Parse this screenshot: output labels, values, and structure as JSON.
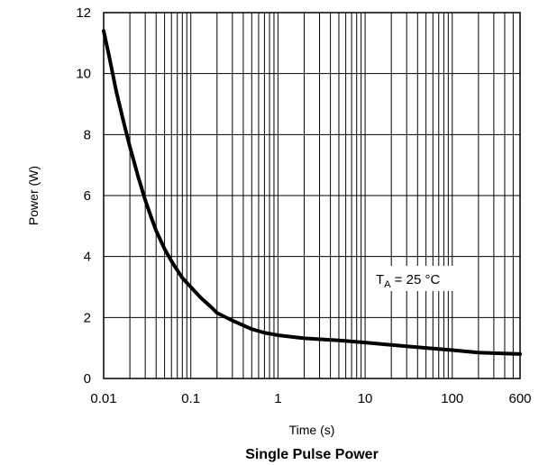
{
  "chart_data": {
    "type": "line",
    "title": "Single Pulse Power",
    "xlabel": "Time (s)",
    "ylabel": "Power  (W)",
    "x_scale": "log",
    "xlim": [
      0.01,
      600
    ],
    "ylim": [
      0,
      12
    ],
    "x_ticks": [
      {
        "value": 0.01,
        "label": "0.01"
      },
      {
        "value": 0.1,
        "label": "0.1"
      },
      {
        "value": 1,
        "label": "1"
      },
      {
        "value": 10,
        "label": "10"
      },
      {
        "value": 100,
        "label": "100"
      },
      {
        "value": 600,
        "label": "600"
      }
    ],
    "y_ticks": [
      {
        "value": 0,
        "label": "0"
      },
      {
        "value": 2,
        "label": "2"
      },
      {
        "value": 4,
        "label": "4"
      },
      {
        "value": 6,
        "label": "6"
      },
      {
        "value": 8,
        "label": "8"
      },
      {
        "value": 10,
        "label": "10"
      },
      {
        "value": 12,
        "label": "12"
      }
    ],
    "grid": true,
    "annotation": {
      "main": "T",
      "sub": "A",
      "rest": " = 25 °C"
    },
    "series": [
      {
        "x": [
          0.01,
          0.0115,
          0.014,
          0.017,
          0.02,
          0.025,
          0.03,
          0.035,
          0.04,
          0.05,
          0.06,
          0.07,
          0.08,
          0.1,
          0.13,
          0.17,
          0.2,
          0.3,
          0.5,
          0.7,
          1,
          2,
          5,
          10,
          20,
          50,
          100,
          200,
          300,
          600
        ],
        "y": [
          11.4,
          10.6,
          9.4,
          8.4,
          7.6,
          6.6,
          5.85,
          5.3,
          4.85,
          4.25,
          3.85,
          3.55,
          3.3,
          3.0,
          2.65,
          2.35,
          2.15,
          1.9,
          1.62,
          1.5,
          1.42,
          1.32,
          1.25,
          1.18,
          1.1,
          1.0,
          0.93,
          0.85,
          0.83,
          0.8
        ]
      }
    ]
  }
}
